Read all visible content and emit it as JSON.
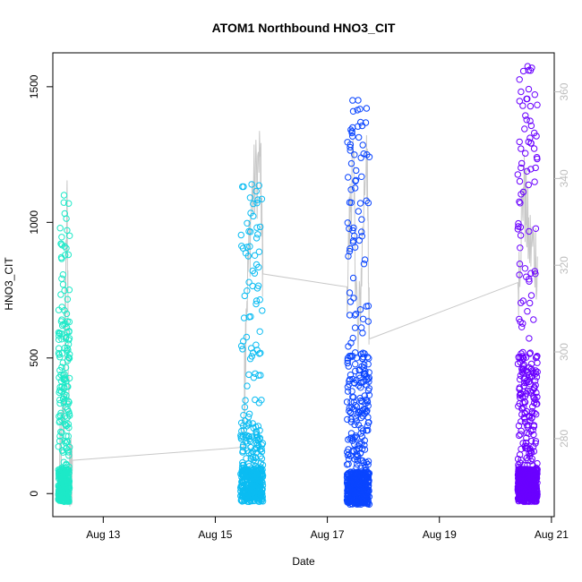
{
  "chart_data": {
    "type": "scatter",
    "title": "ATOM1 Northbound HNO3_CIT",
    "xlabel": "Date",
    "ylabel": "HNO3_CIT",
    "x_ticks": [
      "Aug 13",
      "Aug 15",
      "Aug 17",
      "Aug 19",
      "Aug 21"
    ],
    "x_tick_days": [
      13,
      15,
      17,
      19,
      21
    ],
    "xlim_days": [
      12.1,
      21.05
    ],
    "y_ticks": [
      0,
      500,
      1000,
      1500
    ],
    "ylim": [
      -85,
      1625
    ],
    "y2_ticks": [
      280,
      300,
      320,
      340,
      360
    ],
    "y2lim": [
      262,
      369
    ],
    "y2_color": "#bdbdbd",
    "grid": false,
    "legend": "none",
    "series": [
      {
        "color": "#1de9c8",
        "x_days": [
          12.2,
          12.4
        ],
        "values": [
          -30,
          1100
        ],
        "y_dense_max": 650,
        "count": 380
      },
      {
        "color": "#0bbcf2",
        "x_days": [
          15.45,
          15.85
        ],
        "values": [
          -30,
          1140
        ],
        "y_dense_max": 260,
        "count": 420
      },
      {
        "color": "#0a45ff",
        "x_days": [
          17.35,
          17.75
        ],
        "values": [
          -40,
          1450
        ],
        "y_dense_max": 520,
        "count": 650
      },
      {
        "color": "#6a00ff",
        "x_days": [
          20.4,
          20.75
        ],
        "values": [
          -30,
          1575
        ],
        "y_dense_max": 520,
        "count": 650
      }
    ],
    "altitude_line": {
      "color": "#c8c8c8",
      "points": [
        [
          12.2,
          268
        ],
        [
          12.3,
          285
        ],
        [
          12.35,
          335
        ],
        [
          12.4,
          270
        ],
        [
          12.45,
          275
        ],
        [
          15.5,
          278
        ],
        [
          15.55,
          310
        ],
        [
          15.65,
          335
        ],
        [
          15.8,
          345
        ],
        [
          15.85,
          318
        ],
        [
          17.35,
          315
        ],
        [
          17.45,
          345
        ],
        [
          17.55,
          300
        ],
        [
          17.7,
          350
        ],
        [
          17.75,
          303
        ],
        [
          20.4,
          316
        ],
        [
          20.5,
          338
        ],
        [
          20.6,
          325
        ],
        [
          20.75,
          322
        ]
      ]
    }
  }
}
